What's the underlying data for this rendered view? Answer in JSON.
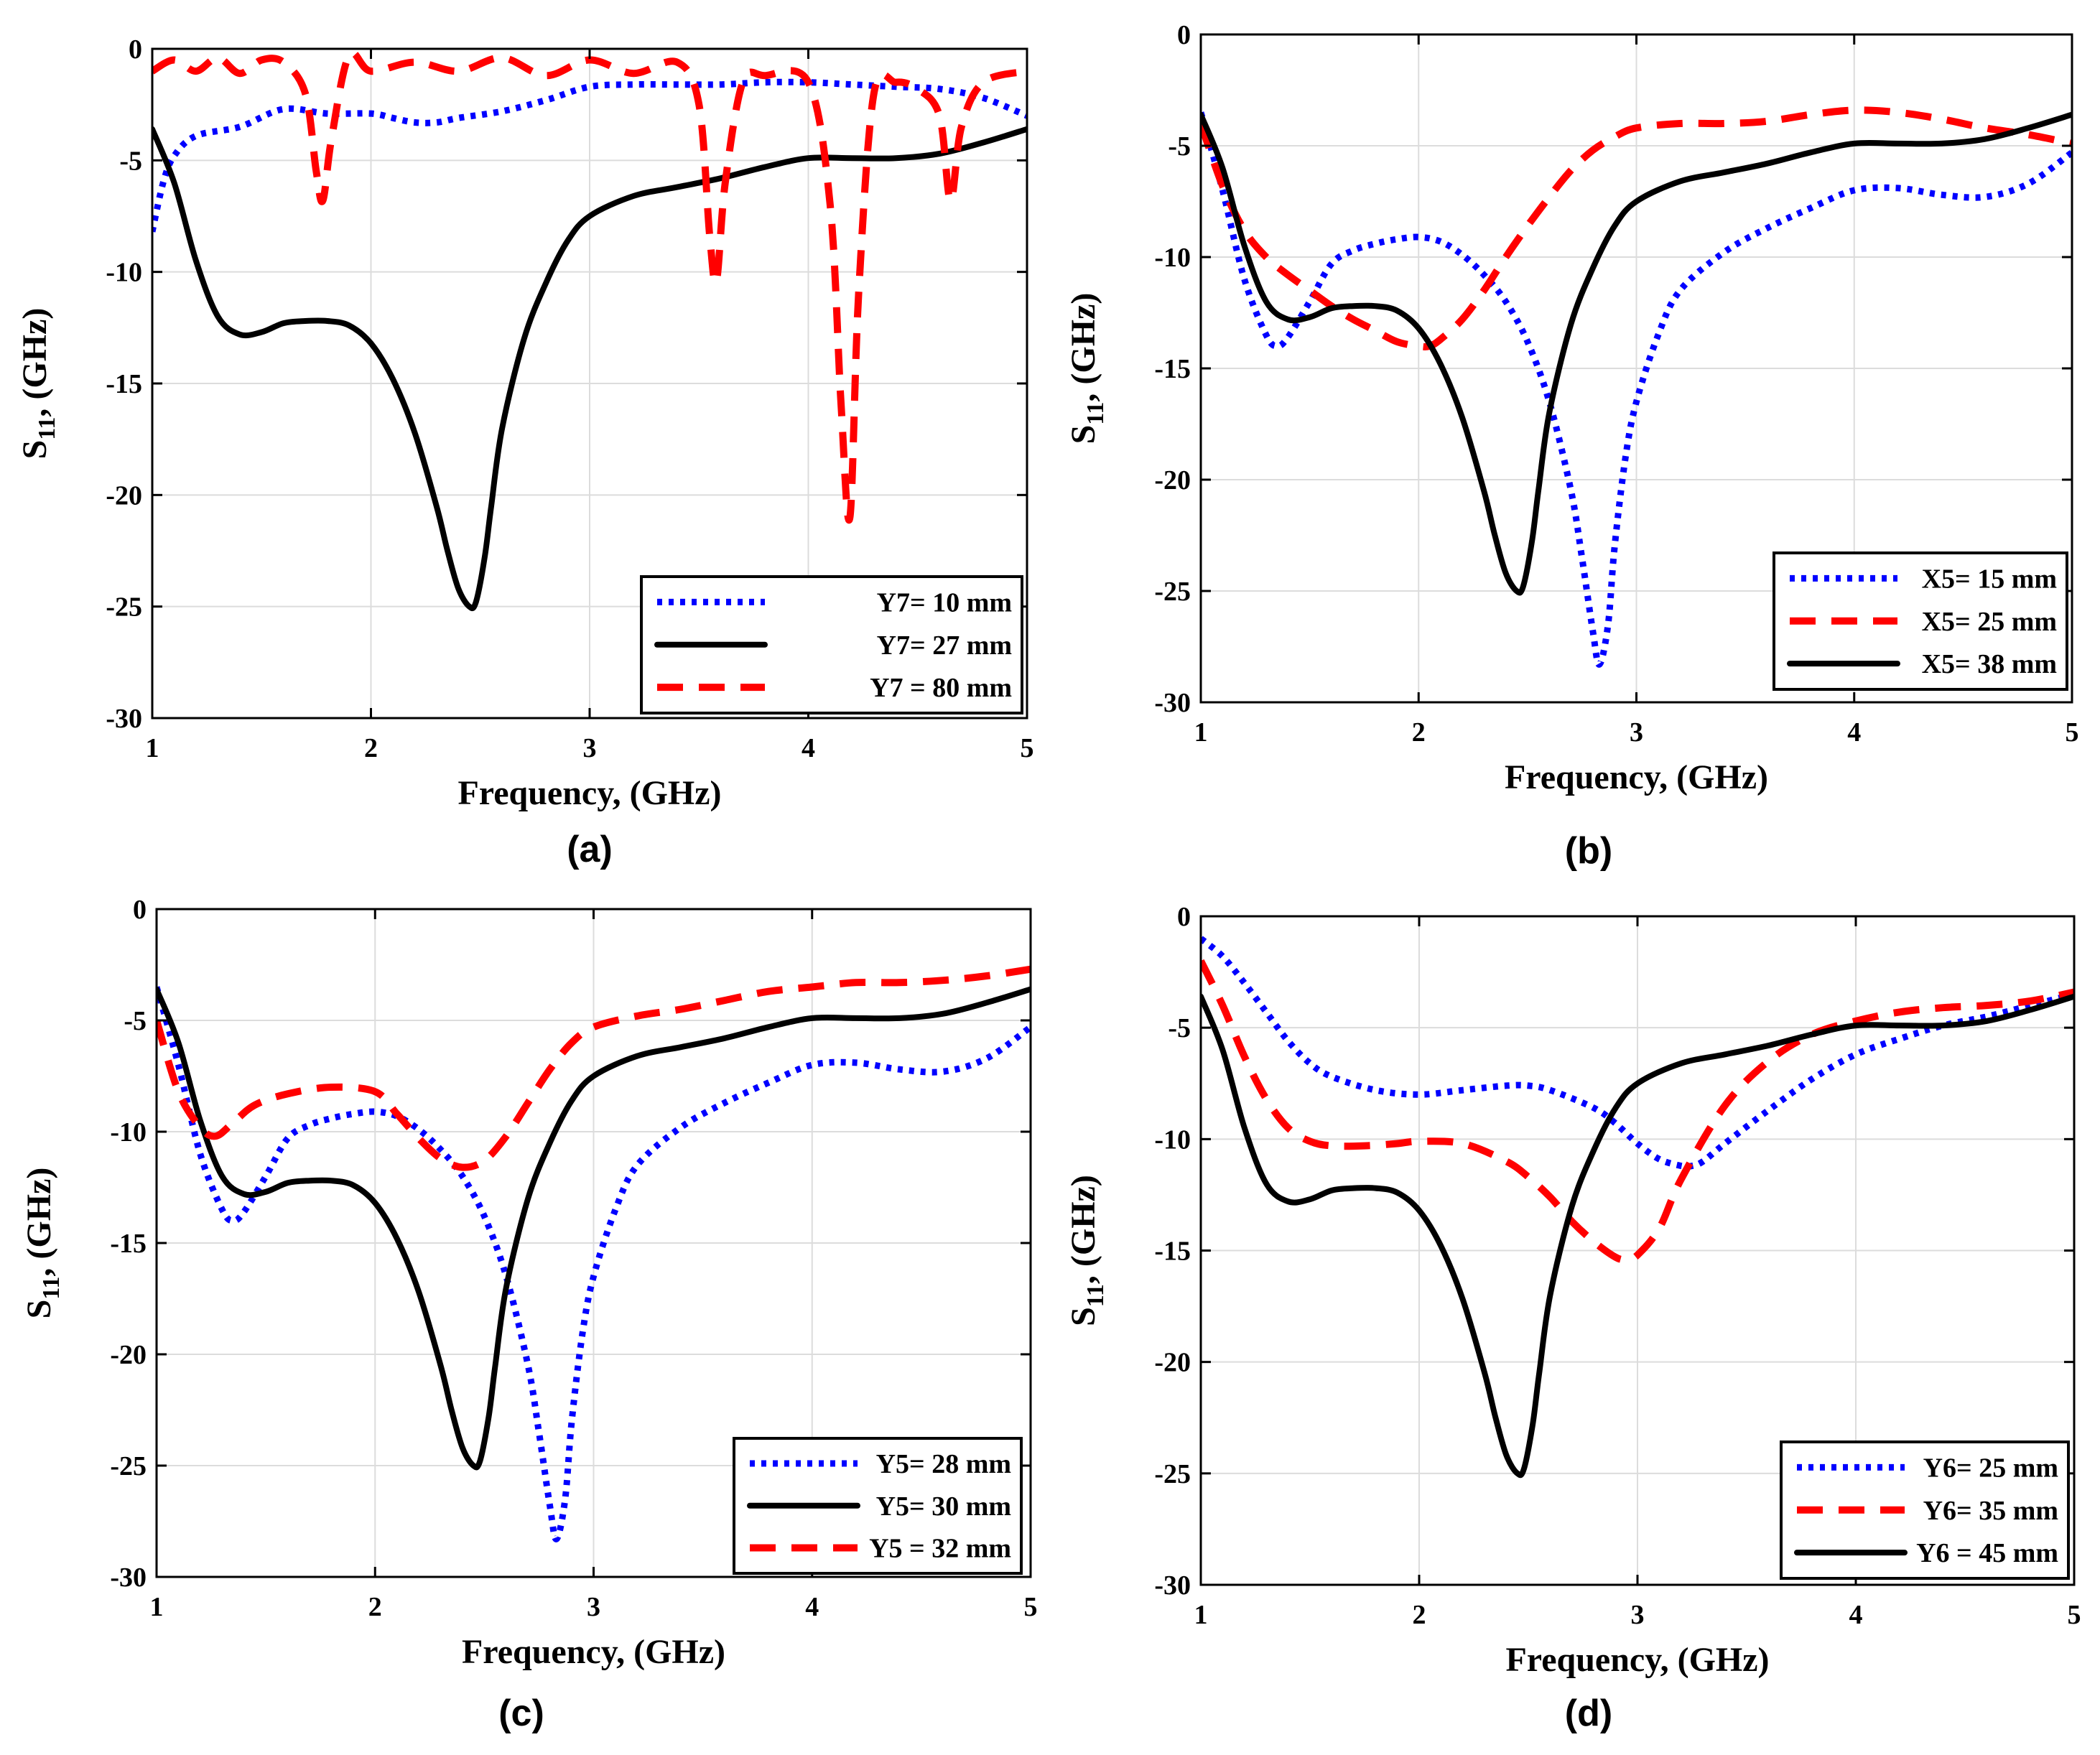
{
  "chart_data": [
    {
      "type": "line",
      "panel_label": "(a)",
      "xlabel": "Frequency, (GHz)",
      "ylabel_main": "S",
      "ylabel_sub": "11",
      "ylabel_rest": ", (GHz)",
      "xlim": [
        1,
        5
      ],
      "ylim": [
        -30,
        0
      ],
      "xticks": [
        1,
        2,
        3,
        4,
        5
      ],
      "yticks": [
        0,
        -5,
        -10,
        -15,
        -20,
        -25,
        -30
      ],
      "grid": true,
      "legend_position": "bottom-right",
      "series": [
        {
          "name": "Y7= 10 mm",
          "style": "dotted",
          "color": "#0000ff",
          "x": [
            1.0,
            1.05,
            1.1,
            1.2,
            1.4,
            1.6,
            1.8,
            2.0,
            2.1,
            2.2,
            2.3,
            2.4,
            2.6,
            2.8,
            3.0,
            3.2,
            3.4,
            3.6,
            3.8,
            4.0,
            4.2,
            4.4,
            4.6,
            4.8,
            5.0
          ],
          "y": [
            -8.2,
            -6.0,
            -4.8,
            -3.9,
            -3.5,
            -2.7,
            -2.9,
            -2.9,
            -3.1,
            -3.3,
            -3.3,
            -3.1,
            -2.8,
            -2.3,
            -1.7,
            -1.6,
            -1.6,
            -1.6,
            -1.5,
            -1.5,
            -1.6,
            -1.7,
            -1.8,
            -2.2,
            -3.0
          ]
        },
        {
          "name": "Y7= 27 mm",
          "style": "solid",
          "color": "#000000",
          "x": [
            1.0,
            1.1,
            1.2,
            1.3,
            1.4,
            1.5,
            1.6,
            1.7,
            1.8,
            1.9,
            2.0,
            2.1,
            2.2,
            2.3,
            2.35,
            2.4,
            2.45,
            2.48,
            2.52,
            2.55,
            2.6,
            2.7,
            2.8,
            2.9,
            3.0,
            3.2,
            3.4,
            3.6,
            3.8,
            4.0,
            4.2,
            4.4,
            4.6,
            4.8,
            5.0
          ],
          "y": [
            -3.6,
            -6.0,
            -9.5,
            -12.0,
            -12.8,
            -12.7,
            -12.3,
            -12.2,
            -12.2,
            -12.4,
            -13.2,
            -14.8,
            -17.2,
            -20.5,
            -22.5,
            -24.2,
            -25.0,
            -24.8,
            -22.8,
            -20.5,
            -17.0,
            -13.0,
            -10.5,
            -8.6,
            -7.5,
            -6.6,
            -6.2,
            -5.8,
            -5.3,
            -4.9,
            -4.9,
            -4.9,
            -4.7,
            -4.2,
            -3.6
          ]
        },
        {
          "name": "Y7 = 80 mm",
          "style": "dashed",
          "color": "#ff0000",
          "x": [
            1.0,
            1.1,
            1.2,
            1.3,
            1.4,
            1.5,
            1.6,
            1.7,
            1.75,
            1.78,
            1.82,
            1.9,
            2.0,
            2.2,
            2.4,
            2.6,
            2.8,
            3.0,
            3.2,
            3.4,
            3.5,
            3.55,
            3.58,
            3.62,
            3.7,
            3.8,
            4.0,
            4.1,
            4.15,
            4.19,
            4.23,
            4.3,
            4.4,
            4.5,
            4.6,
            4.65,
            4.7,
            4.8,
            5.0
          ],
          "y": [
            -1.0,
            -0.5,
            -1.0,
            -0.4,
            -1.1,
            -0.5,
            -0.6,
            -2.0,
            -5.5,
            -6.8,
            -4.0,
            -0.3,
            -1.0,
            -0.6,
            -1.0,
            -0.4,
            -1.2,
            -0.5,
            -1.1,
            -0.6,
            -2.5,
            -8.5,
            -10.4,
            -6.0,
            -1.5,
            -1.2,
            -1.5,
            -7.0,
            -16.0,
            -21.0,
            -11.0,
            -2.0,
            -1.5,
            -1.8,
            -3.0,
            -6.8,
            -3.5,
            -1.5,
            -1.0
          ]
        }
      ]
    },
    {
      "type": "line",
      "panel_label": "(b)",
      "xlabel": "Frequency, (GHz)",
      "ylabel_main": "S",
      "ylabel_sub": "11",
      "ylabel_rest": ", (GHz)",
      "xlim": [
        1,
        5
      ],
      "ylim": [
        -30,
        0
      ],
      "xticks": [
        1,
        2,
        3,
        4,
        5
      ],
      "yticks": [
        0,
        -5,
        -10,
        -15,
        -20,
        -25,
        -30
      ],
      "grid": true,
      "legend_position": "bottom-right",
      "series": [
        {
          "name": "X5= 15 mm",
          "style": "dotted",
          "color": "#0000ff",
          "x": [
            1.0,
            1.1,
            1.2,
            1.3,
            1.35,
            1.4,
            1.5,
            1.6,
            1.7,
            1.8,
            1.9,
            2.0,
            2.1,
            2.2,
            2.3,
            2.4,
            2.5,
            2.6,
            2.7,
            2.75,
            2.8,
            2.83,
            2.87,
            2.9,
            2.95,
            3.0,
            3.1,
            3.2,
            3.4,
            3.6,
            3.8,
            4.0,
            4.2,
            4.4,
            4.6,
            4.8,
            5.0
          ],
          "y": [
            -3.5,
            -7.0,
            -11.0,
            -13.5,
            -14.0,
            -13.6,
            -12.0,
            -10.3,
            -9.7,
            -9.4,
            -9.2,
            -9.1,
            -9.3,
            -9.9,
            -10.8,
            -12.0,
            -13.8,
            -16.5,
            -20.5,
            -23.5,
            -26.8,
            -28.3,
            -26.5,
            -23.0,
            -19.0,
            -16.5,
            -13.5,
            -11.5,
            -9.8,
            -8.7,
            -7.8,
            -7.0,
            -6.9,
            -7.2,
            -7.3,
            -6.7,
            -5.3
          ]
        },
        {
          "name": "X5= 25 mm",
          "style": "dashed",
          "color": "#ff0000",
          "x": [
            1.0,
            1.1,
            1.2,
            1.3,
            1.4,
            1.5,
            1.6,
            1.7,
            1.8,
            1.9,
            2.0,
            2.05,
            2.1,
            2.2,
            2.3,
            2.4,
            2.5,
            2.6,
            2.7,
            2.8,
            2.9,
            3.0,
            3.2,
            3.4,
            3.6,
            3.8,
            4.0,
            4.2,
            4.4,
            4.6,
            4.8,
            5.0
          ],
          "y": [
            -4.0,
            -6.8,
            -8.8,
            -10.0,
            -10.8,
            -11.5,
            -12.2,
            -12.8,
            -13.3,
            -13.8,
            -14.0,
            -14.0,
            -13.7,
            -12.8,
            -11.5,
            -10.0,
            -8.6,
            -7.3,
            -6.1,
            -5.2,
            -4.6,
            -4.2,
            -4.0,
            -4.0,
            -3.9,
            -3.6,
            -3.4,
            -3.5,
            -3.8,
            -4.2,
            -4.5,
            -4.9
          ]
        },
        {
          "name": "X5= 38 mm",
          "style": "solid",
          "color": "#000000",
          "x": [
            1.0,
            1.1,
            1.2,
            1.3,
            1.4,
            1.5,
            1.6,
            1.7,
            1.8,
            1.9,
            2.0,
            2.1,
            2.2,
            2.3,
            2.35,
            2.4,
            2.45,
            2.48,
            2.52,
            2.55,
            2.6,
            2.7,
            2.8,
            2.9,
            3.0,
            3.2,
            3.4,
            3.6,
            3.8,
            4.0,
            4.2,
            4.4,
            4.6,
            4.8,
            5.0
          ],
          "y": [
            -3.6,
            -6.0,
            -9.5,
            -12.0,
            -12.8,
            -12.7,
            -12.3,
            -12.2,
            -12.2,
            -12.4,
            -13.2,
            -14.8,
            -17.2,
            -20.5,
            -22.5,
            -24.2,
            -25.0,
            -24.8,
            -22.8,
            -20.5,
            -17.0,
            -13.0,
            -10.5,
            -8.6,
            -7.5,
            -6.6,
            -6.2,
            -5.8,
            -5.3,
            -4.9,
            -4.9,
            -4.9,
            -4.7,
            -4.2,
            -3.6
          ]
        }
      ]
    },
    {
      "type": "line",
      "panel_label": "(c)",
      "xlabel": "Frequency, (GHz)",
      "ylabel_main": "S",
      "ylabel_sub": "11",
      "ylabel_rest": ", (GHz)",
      "xlim": [
        1,
        5
      ],
      "ylim": [
        -30,
        0
      ],
      "xticks": [
        1,
        2,
        3,
        4,
        5
      ],
      "yticks": [
        0,
        -5,
        -10,
        -15,
        -20,
        -25,
        -30
      ],
      "grid": true,
      "legend_position": "bottom-right",
      "series": [
        {
          "name": "Y5= 28 mm",
          "style": "dotted",
          "color": "#0000ff",
          "x": [
            1.0,
            1.1,
            1.2,
            1.3,
            1.35,
            1.4,
            1.5,
            1.6,
            1.7,
            1.8,
            1.9,
            2.0,
            2.1,
            2.2,
            2.3,
            2.4,
            2.5,
            2.6,
            2.7,
            2.75,
            2.8,
            2.83,
            2.87,
            2.9,
            2.95,
            3.0,
            3.1,
            3.2,
            3.4,
            3.6,
            3.8,
            4.0,
            4.2,
            4.4,
            4.6,
            4.8,
            5.0
          ],
          "y": [
            -3.5,
            -7.0,
            -11.0,
            -13.5,
            -14.0,
            -13.6,
            -12.0,
            -10.3,
            -9.7,
            -9.4,
            -9.2,
            -9.1,
            -9.3,
            -9.9,
            -10.8,
            -12.0,
            -13.8,
            -16.5,
            -20.5,
            -23.5,
            -26.8,
            -28.3,
            -26.5,
            -23.0,
            -19.0,
            -16.5,
            -13.5,
            -11.5,
            -9.8,
            -8.7,
            -7.8,
            -7.0,
            -6.9,
            -7.2,
            -7.3,
            -6.7,
            -5.3
          ]
        },
        {
          "name": "Y5= 30 mm",
          "style": "solid",
          "color": "#000000",
          "x": [
            1.0,
            1.1,
            1.2,
            1.3,
            1.4,
            1.5,
            1.6,
            1.7,
            1.8,
            1.9,
            2.0,
            2.1,
            2.2,
            2.3,
            2.35,
            2.4,
            2.45,
            2.48,
            2.52,
            2.55,
            2.6,
            2.7,
            2.8,
            2.9,
            3.0,
            3.2,
            3.4,
            3.6,
            3.8,
            4.0,
            4.2,
            4.4,
            4.6,
            4.8,
            5.0
          ],
          "y": [
            -3.6,
            -6.0,
            -9.5,
            -12.0,
            -12.8,
            -12.7,
            -12.3,
            -12.2,
            -12.2,
            -12.4,
            -13.2,
            -14.8,
            -17.2,
            -20.5,
            -22.5,
            -24.2,
            -25.0,
            -24.8,
            -22.8,
            -20.5,
            -17.0,
            -13.0,
            -10.5,
            -8.6,
            -7.5,
            -6.6,
            -6.2,
            -5.8,
            -5.3,
            -4.9,
            -4.9,
            -4.9,
            -4.7,
            -4.2,
            -3.6
          ]
        },
        {
          "name": "Y5 = 32 mm",
          "style": "dashed",
          "color": "#ff0000",
          "x": [
            1.0,
            1.1,
            1.2,
            1.27,
            1.35,
            1.45,
            1.6,
            1.8,
            2.0,
            2.1,
            2.2,
            2.3,
            2.4,
            2.5,
            2.6,
            2.7,
            2.8,
            2.9,
            3.0,
            3.2,
            3.4,
            3.6,
            3.8,
            4.0,
            4.2,
            4.4,
            4.6,
            4.8,
            5.0
          ],
          "y": [
            -5.0,
            -8.2,
            -9.8,
            -10.2,
            -9.6,
            -8.8,
            -8.3,
            -8.0,
            -8.2,
            -9.2,
            -10.3,
            -11.2,
            -11.6,
            -11.3,
            -10.2,
            -8.7,
            -7.2,
            -6.0,
            -5.3,
            -4.8,
            -4.5,
            -4.1,
            -3.7,
            -3.5,
            -3.3,
            -3.3,
            -3.2,
            -3.0,
            -2.7
          ]
        }
      ]
    },
    {
      "type": "line",
      "panel_label": "(d)",
      "xlabel": "Frequency, (GHz)",
      "ylabel_main": "S",
      "ylabel_sub": "11",
      "ylabel_rest": ", (GHz)",
      "xlim": [
        1,
        5
      ],
      "ylim": [
        -30,
        0
      ],
      "xticks": [
        1,
        2,
        3,
        4,
        5
      ],
      "yticks": [
        0,
        -5,
        -10,
        -15,
        -20,
        -25,
        -30
      ],
      "grid": true,
      "legend_position": "bottom-right",
      "series": [
        {
          "name": "Y6= 25 mm",
          "style": "dotted",
          "color": "#0000ff",
          "x": [
            1.0,
            1.1,
            1.2,
            1.3,
            1.4,
            1.5,
            1.6,
            1.8,
            2.0,
            2.2,
            2.4,
            2.5,
            2.6,
            2.8,
            2.9,
            3.0,
            3.1,
            3.2,
            3.25,
            3.3,
            3.4,
            3.6,
            3.8,
            4.0,
            4.2,
            4.4,
            4.6,
            4.8,
            5.0
          ],
          "y": [
            -1.0,
            -1.8,
            -3.0,
            -4.3,
            -5.6,
            -6.6,
            -7.2,
            -7.8,
            -8.0,
            -7.8,
            -7.6,
            -7.6,
            -7.8,
            -8.6,
            -9.3,
            -10.2,
            -10.9,
            -11.2,
            -11.2,
            -11.0,
            -10.2,
            -8.7,
            -7.3,
            -6.2,
            -5.5,
            -4.9,
            -4.5,
            -4.0,
            -3.5
          ]
        },
        {
          "name": "Y6= 35 mm",
          "style": "dashed",
          "color": "#ff0000",
          "x": [
            1.0,
            1.1,
            1.2,
            1.3,
            1.4,
            1.5,
            1.6,
            1.75,
            1.9,
            2.0,
            2.2,
            2.4,
            2.5,
            2.6,
            2.7,
            2.8,
            2.9,
            2.95,
            3.0,
            3.1,
            3.2,
            3.4,
            3.6,
            3.8,
            4.0,
            4.2,
            4.4,
            4.6,
            4.8,
            5.0
          ],
          "y": [
            -2.0,
            -4.0,
            -6.3,
            -8.2,
            -9.5,
            -10.1,
            -10.3,
            -10.3,
            -10.2,
            -10.1,
            -10.2,
            -11.0,
            -11.7,
            -12.6,
            -13.7,
            -14.6,
            -15.3,
            -15.4,
            -15.2,
            -14.0,
            -11.8,
            -8.5,
            -6.5,
            -5.3,
            -4.7,
            -4.3,
            -4.1,
            -4.0,
            -3.8,
            -3.4
          ]
        },
        {
          "name": "Y6 = 45 mm",
          "style": "solid",
          "color": "#000000",
          "x": [
            1.0,
            1.1,
            1.2,
            1.3,
            1.4,
            1.5,
            1.6,
            1.7,
            1.8,
            1.9,
            2.0,
            2.1,
            2.2,
            2.3,
            2.35,
            2.4,
            2.45,
            2.48,
            2.52,
            2.55,
            2.6,
            2.7,
            2.8,
            2.9,
            3.0,
            3.2,
            3.4,
            3.6,
            3.8,
            4.0,
            4.2,
            4.4,
            4.6,
            4.8,
            5.0
          ],
          "y": [
            -3.6,
            -6.0,
            -9.5,
            -12.0,
            -12.8,
            -12.7,
            -12.3,
            -12.2,
            -12.2,
            -12.4,
            -13.2,
            -14.8,
            -17.2,
            -20.5,
            -22.5,
            -24.2,
            -25.0,
            -24.8,
            -22.8,
            -20.5,
            -17.0,
            -13.0,
            -10.5,
            -8.6,
            -7.5,
            -6.6,
            -6.2,
            -5.8,
            -5.3,
            -4.9,
            -4.9,
            -4.9,
            -4.7,
            -4.2,
            -3.6
          ]
        }
      ]
    }
  ]
}
